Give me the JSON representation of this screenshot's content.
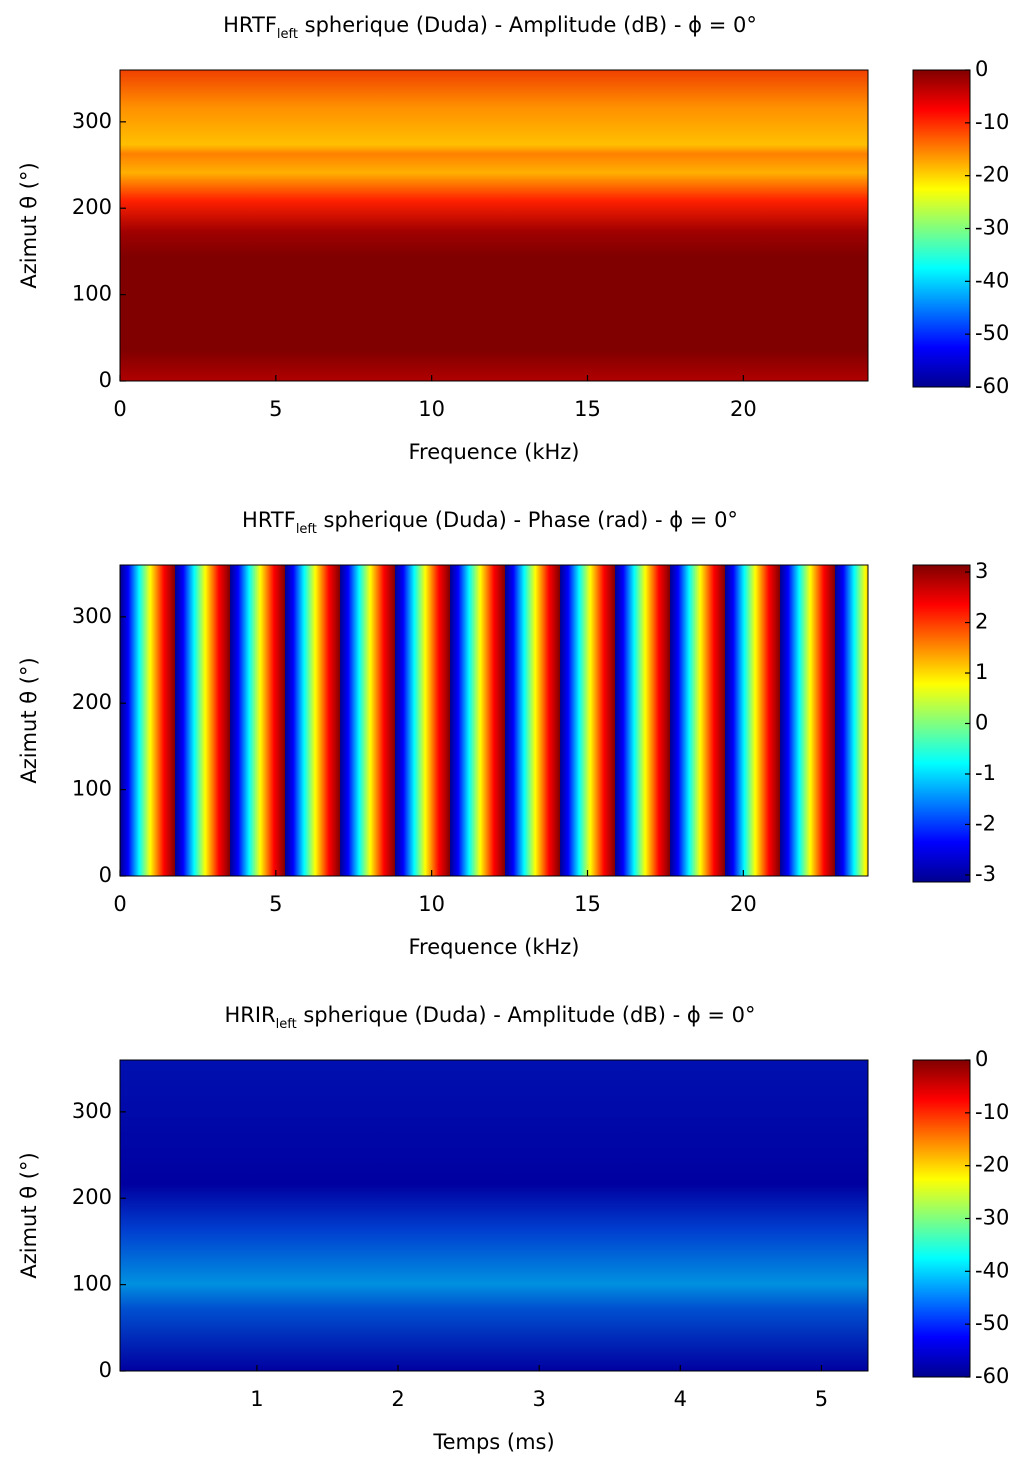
{
  "chart_data": [
    {
      "type": "heatmap",
      "title_main": "HRTF",
      "title_sub": "left",
      "title_rest": " spherique (Duda) - Amplitude (dB) - ϕ = 0°",
      "x_label": "Frequence (kHz)",
      "y_label": "Azimut θ (°)",
      "colormap": "jet",
      "xlim": [
        0,
        24
      ],
      "xticks": [
        0,
        5,
        10,
        15,
        20
      ],
      "ylim": [
        0,
        360
      ],
      "yticks": [
        0,
        100,
        200,
        300
      ],
      "colorbar_lim": [
        -60,
        0
      ],
      "colorbar_ticks": [
        0,
        -10,
        -20,
        -30,
        -40,
        -50,
        -60
      ]
    },
    {
      "type": "heatmap",
      "title_main": "HRTF",
      "title_sub": "left",
      "title_rest": " spherique (Duda) - Phase (rad) - ϕ = 0°",
      "x_label": "Frequence (kHz)",
      "y_label": "Azimut θ (°)",
      "colormap": "jet",
      "xlim": [
        0,
        24
      ],
      "xticks": [
        0,
        5,
        10,
        15,
        20
      ],
      "ylim": [
        0,
        360
      ],
      "yticks": [
        0,
        100,
        200,
        300
      ],
      "colorbar_lim": [
        -3.14,
        3.14
      ],
      "colorbar_ticks": [
        3,
        2,
        1,
        0,
        -1,
        -2,
        -3
      ]
    },
    {
      "type": "heatmap",
      "title_main": "HRIR",
      "title_sub": "left",
      "title_rest": " spherique (Duda) - Amplitude (dB) - ϕ = 0°",
      "x_label": "Temps (ms)",
      "y_label": "Azimut θ (°)",
      "colormap": "jet",
      "xlim": [
        0.03,
        5.33
      ],
      "xticks": [
        1,
        2,
        3,
        4,
        5
      ],
      "ylim": [
        0,
        360
      ],
      "yticks": [
        0,
        100,
        200,
        300
      ],
      "colorbar_lim": [
        -60,
        0
      ],
      "colorbar_ticks": [
        0,
        -10,
        -20,
        -30,
        -40,
        -50,
        -60
      ]
    }
  ]
}
